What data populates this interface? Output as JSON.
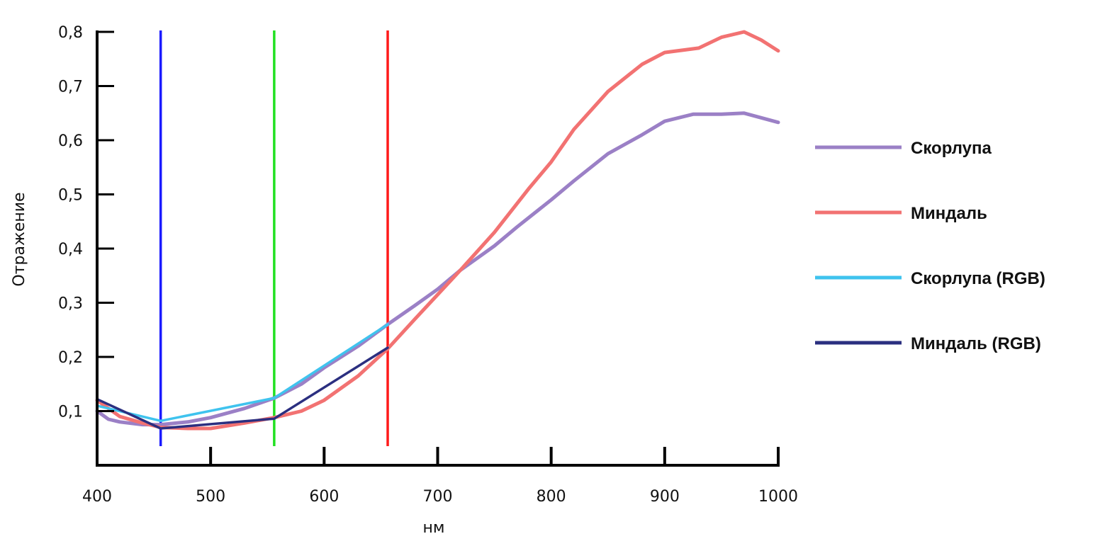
{
  "chart_data": {
    "type": "line",
    "title": "",
    "xlabel": "нм",
    "ylabel": "Отражение",
    "xlim": [
      400,
      1000
    ],
    "ylim": [
      0,
      0.8
    ],
    "x_ticks": [
      "400",
      "500",
      "600",
      "700",
      "800",
      "900",
      "1000"
    ],
    "x_tick_values": [
      400,
      500,
      600,
      700,
      800,
      900,
      1000
    ],
    "y_ticks": [
      "0,1",
      "0,2",
      "0,3",
      "0,4",
      "0,5",
      "0,6",
      "0,7",
      "0,8"
    ],
    "y_tick_values": [
      0.1,
      0.2,
      0.3,
      0.4,
      0.5,
      0.6,
      0.7,
      0.8
    ],
    "grid": false,
    "legend_position": "right",
    "vertical_markers": [
      {
        "name": "blue",
        "x": 456,
        "color": "#1a1aff"
      },
      {
        "name": "green",
        "x": 556,
        "color": "#22e022"
      },
      {
        "name": "red",
        "x": 656,
        "color": "#ff1a1a"
      }
    ],
    "series": [
      {
        "name": "Скорлупа",
        "color": "#9b80c6",
        "x": [
          400,
          410,
          420,
          440,
          456,
          480,
          500,
          530,
          556,
          580,
          600,
          630,
          656,
          680,
          700,
          720,
          750,
          770,
          800,
          820,
          850,
          880,
          900,
          925,
          950,
          970,
          1000
        ],
        "y": [
          0.1,
          0.085,
          0.08,
          0.075,
          0.075,
          0.08,
          0.088,
          0.105,
          0.124,
          0.15,
          0.18,
          0.22,
          0.26,
          0.295,
          0.325,
          0.36,
          0.405,
          0.44,
          0.49,
          0.525,
          0.575,
          0.61,
          0.635,
          0.648,
          0.648,
          0.65,
          0.633
        ]
      },
      {
        "name": "Миндаль",
        "color": "#f27272",
        "x": [
          400,
          420,
          440,
          456,
          480,
          500,
          530,
          556,
          580,
          600,
          630,
          656,
          680,
          700,
          720,
          750,
          780,
          800,
          820,
          850,
          880,
          900,
          930,
          950,
          970,
          985,
          1000
        ],
        "y": [
          0.12,
          0.09,
          0.078,
          0.07,
          0.068,
          0.068,
          0.078,
          0.088,
          0.1,
          0.12,
          0.165,
          0.215,
          0.27,
          0.315,
          0.36,
          0.43,
          0.51,
          0.56,
          0.62,
          0.69,
          0.74,
          0.762,
          0.77,
          0.79,
          0.8,
          0.785,
          0.765
        ]
      },
      {
        "name": "Скорлупа (RGB)",
        "color": "#3fc3ee",
        "x": [
          400,
          456,
          556,
          656
        ],
        "y": [
          0.11,
          0.082,
          0.124,
          0.26
        ]
      },
      {
        "name": "Миндаль (RGB)",
        "color": "#2b2f80",
        "x": [
          400,
          456,
          556,
          656
        ],
        "y": [
          0.122,
          0.068,
          0.086,
          0.217
        ]
      }
    ]
  }
}
